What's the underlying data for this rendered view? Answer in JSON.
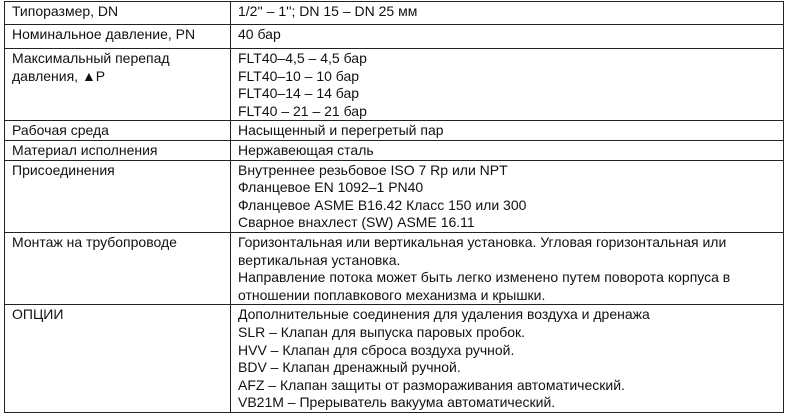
{
  "rows": [
    {
      "label": "Типоразмер, DN",
      "values": [
        "1/2'' – 1''; DN 15 – DN 25 мм"
      ]
    },
    {
      "label": "Номинальное давление, PN",
      "values": [
        "40 бар"
      ]
    },
    {
      "label": "Максимальный перепад давления, ▲P",
      "values": [
        "FLT40–4,5 – 4,5 бар",
        "FLT40–10 – 10 бар",
        "FLT40–14 – 14 бар",
        "FLT40 – 21 – 21 бар"
      ]
    },
    {
      "label": "Рабочая среда",
      "values": [
        "Насыщенный и перегретый пар"
      ]
    },
    {
      "label": "Материал исполнения",
      "values": [
        "Нержавеющая сталь"
      ]
    },
    {
      "label": "Присоединения",
      "values": [
        "Внутреннее резьбовое ISO 7 Rp или NPT",
        "Фланцевое EN 1092–1 PN40",
        "Фланцевое ASME B16.42 Класс 150 или 300",
        "Сварное внахлест (SW) ASME 16.11"
      ]
    },
    {
      "label": "Монтаж на трубопроводе",
      "values": [
        "Горизонтальная или вертикальная установка. Угловая горизонтальная или вертикальная установка.",
        "Направление потока может быть легко изменено путем поворота корпуса в отношении поплавкового механизма и крышки."
      ]
    },
    {
      "label": "ОПЦИИ",
      "values": [
        "Дополнительные соединения для удаления воздуха и дренажа",
        "SLR – Клапан для выпуска паровых пробок.",
        "HVV – Клапан для сброса воздуха ручной.",
        "BDV – Клапан дренажный ручной.",
        "AFZ – Клапан защиты от размораживания автоматический.",
        "VB21M – Прерыватель вакуума автоматический."
      ]
    }
  ]
}
